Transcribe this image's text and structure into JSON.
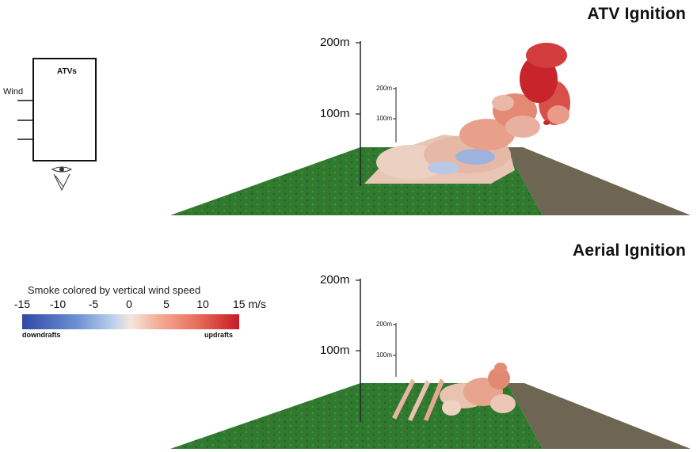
{
  "panels": [
    {
      "title": "ATV Ignition",
      "axis_labels": [
        "200m",
        "100m"
      ],
      "inner_labels": [
        "200m",
        "100m"
      ]
    },
    {
      "title": "Aerial Ignition",
      "axis_labels": [
        "200m",
        "100m"
      ],
      "inner_labels": [
        "200m",
        "100m"
      ]
    }
  ],
  "inset": {
    "title": "ATVs",
    "wind_label": "Wind"
  },
  "colorbar": {
    "title": "Smoke colored by vertical wind speed",
    "ticks": [
      "-15",
      "-10",
      "-5",
      "0",
      "5",
      "10",
      "15 m/s"
    ],
    "left_label": "downdrafts",
    "right_label": "updrafts",
    "colors": [
      "#3049a6",
      "#6c8fd1",
      "#bcd1ec",
      "#f5e6dc",
      "#f4b09a",
      "#e9705c",
      "#c61b26"
    ]
  },
  "colors": {
    "grass": "#2f7a2e",
    "bare_ground": "#6e6552",
    "smoke_light": "#e9c3b3",
    "smoke_red": "#c8242b",
    "smoke_blue": "#8ea9db"
  }
}
